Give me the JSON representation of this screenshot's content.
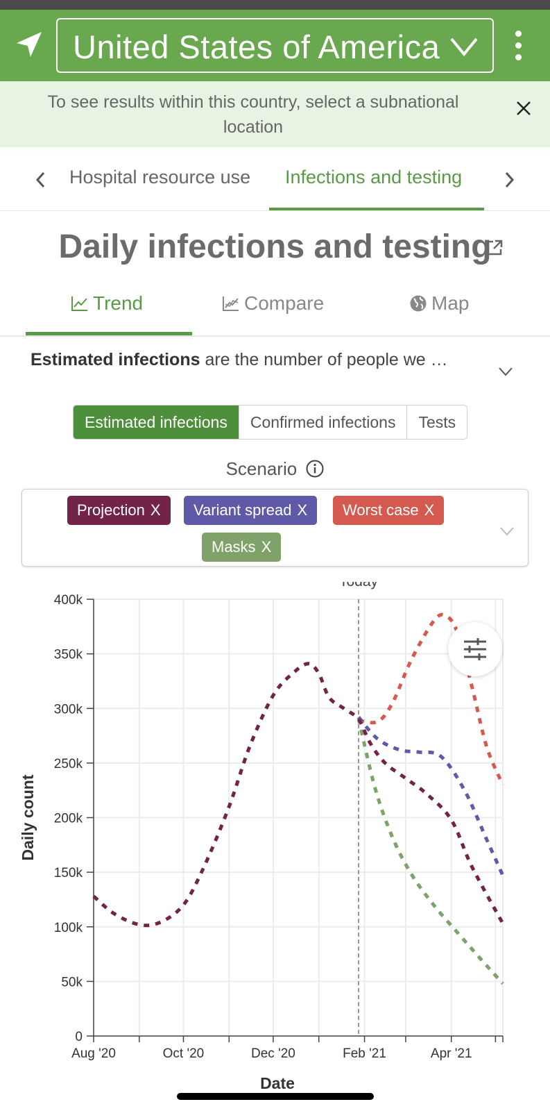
{
  "header": {
    "country": "United States of America",
    "locate_icon": "location-arrow-icon",
    "menu_icon": "kebab-menu-icon"
  },
  "notice": {
    "text": "To see results within this country, select a subnational location",
    "close_label": "X"
  },
  "tabs": {
    "items": [
      {
        "label": "Hospital resource use",
        "active": false
      },
      {
        "label": "Infections and testing",
        "active": true
      }
    ]
  },
  "page": {
    "title": "Daily infections and testing"
  },
  "view_tabs": {
    "items": [
      {
        "label": "Trend",
        "icon": "line-chart-icon",
        "active": true
      },
      {
        "label": "Compare",
        "icon": "compare-chart-icon",
        "active": false
      },
      {
        "label": "Map",
        "icon": "globe-icon",
        "active": false
      }
    ]
  },
  "description": {
    "bold": "Estimated infections",
    "rest": " are the number of people we …"
  },
  "measure_toggle": {
    "options": [
      "Estimated infections",
      "Confirmed infections",
      "Tests"
    ],
    "selected": "Estimated infections"
  },
  "scenario": {
    "label": "Scenario",
    "chips": [
      {
        "label": "Projection",
        "color": "#722448"
      },
      {
        "label": "Variant spread",
        "color": "#5e5aa8"
      },
      {
        "label": "Worst case",
        "color": "#d45a4f"
      },
      {
        "label": "Masks",
        "color": "#7ea26a"
      }
    ],
    "remove_label": "X"
  },
  "chart_data": {
    "type": "line",
    "xlabel": "Date",
    "ylabel": "Daily count",
    "ylim": [
      0,
      400000
    ],
    "yticks": [
      0,
      50000,
      100000,
      150000,
      200000,
      250000,
      300000,
      350000,
      400000
    ],
    "ytick_labels": [
      "0",
      "50k",
      "100k",
      "150k",
      "200k",
      "250k",
      "300k",
      "350k",
      "400k"
    ],
    "x_axis_type": "date",
    "xlim": [
      "2020-08-01",
      "2021-05-06"
    ],
    "xticks": [
      "2020-08-01",
      "2020-10-01",
      "2020-12-01",
      "2021-02-01",
      "2021-04-01"
    ],
    "xtick_labels": [
      "Aug '20",
      "Oct '20",
      "Dec '20",
      "Feb '21",
      "Apr '21"
    ],
    "today_label": "Today",
    "today_date": "2021-01-28",
    "grid": true,
    "colors": {
      "Projection": "#722448",
      "Variant spread": "#5e5aa8",
      "Worst case": "#d45a4f",
      "Masks": "#7ea26a"
    },
    "series": [
      {
        "name": "Projection",
        "points": [
          [
            "2020-08-01",
            128000
          ],
          [
            "2020-08-15",
            112000
          ],
          [
            "2020-09-01",
            102000
          ],
          [
            "2020-09-15",
            104000
          ],
          [
            "2020-10-01",
            120000
          ],
          [
            "2020-10-15",
            155000
          ],
          [
            "2020-11-01",
            210000
          ],
          [
            "2020-11-15",
            265000
          ],
          [
            "2020-12-01",
            312000
          ],
          [
            "2020-12-15",
            333000
          ],
          [
            "2020-12-25",
            341000
          ],
          [
            "2021-01-01",
            332000
          ],
          [
            "2021-01-08",
            310000
          ],
          [
            "2021-01-18",
            300000
          ],
          [
            "2021-01-28",
            290000
          ],
          [
            "2021-02-05",
            268000
          ],
          [
            "2021-02-15",
            250000
          ],
          [
            "2021-03-01",
            236000
          ],
          [
            "2021-03-15",
            222000
          ],
          [
            "2021-04-01",
            198000
          ],
          [
            "2021-04-15",
            155000
          ],
          [
            "2021-05-06",
            103000
          ]
        ]
      },
      {
        "name": "Variant spread",
        "points": [
          [
            "2021-01-28",
            292000
          ],
          [
            "2021-02-10",
            272000
          ],
          [
            "2021-02-25",
            262000
          ],
          [
            "2021-03-10",
            260000
          ],
          [
            "2021-03-25",
            256000
          ],
          [
            "2021-04-10",
            225000
          ],
          [
            "2021-04-25",
            180000
          ],
          [
            "2021-05-06",
            147000
          ]
        ]
      },
      {
        "name": "Worst case",
        "points": [
          [
            "2021-01-28",
            289000
          ],
          [
            "2021-02-10",
            288000
          ],
          [
            "2021-02-20",
            305000
          ],
          [
            "2021-03-05",
            345000
          ],
          [
            "2021-03-20",
            380000
          ],
          [
            "2021-03-28",
            385000
          ],
          [
            "2021-04-05",
            370000
          ],
          [
            "2021-04-15",
            320000
          ],
          [
            "2021-04-25",
            265000
          ],
          [
            "2021-05-06",
            230000
          ]
        ]
      },
      {
        "name": "Masks",
        "points": [
          [
            "2021-01-28",
            291000
          ],
          [
            "2021-02-08",
            228000
          ],
          [
            "2021-02-20",
            182000
          ],
          [
            "2021-03-05",
            148000
          ],
          [
            "2021-03-20",
            120000
          ],
          [
            "2021-04-05",
            95000
          ],
          [
            "2021-04-20",
            72000
          ],
          [
            "2021-05-06",
            48000
          ]
        ]
      }
    ]
  }
}
